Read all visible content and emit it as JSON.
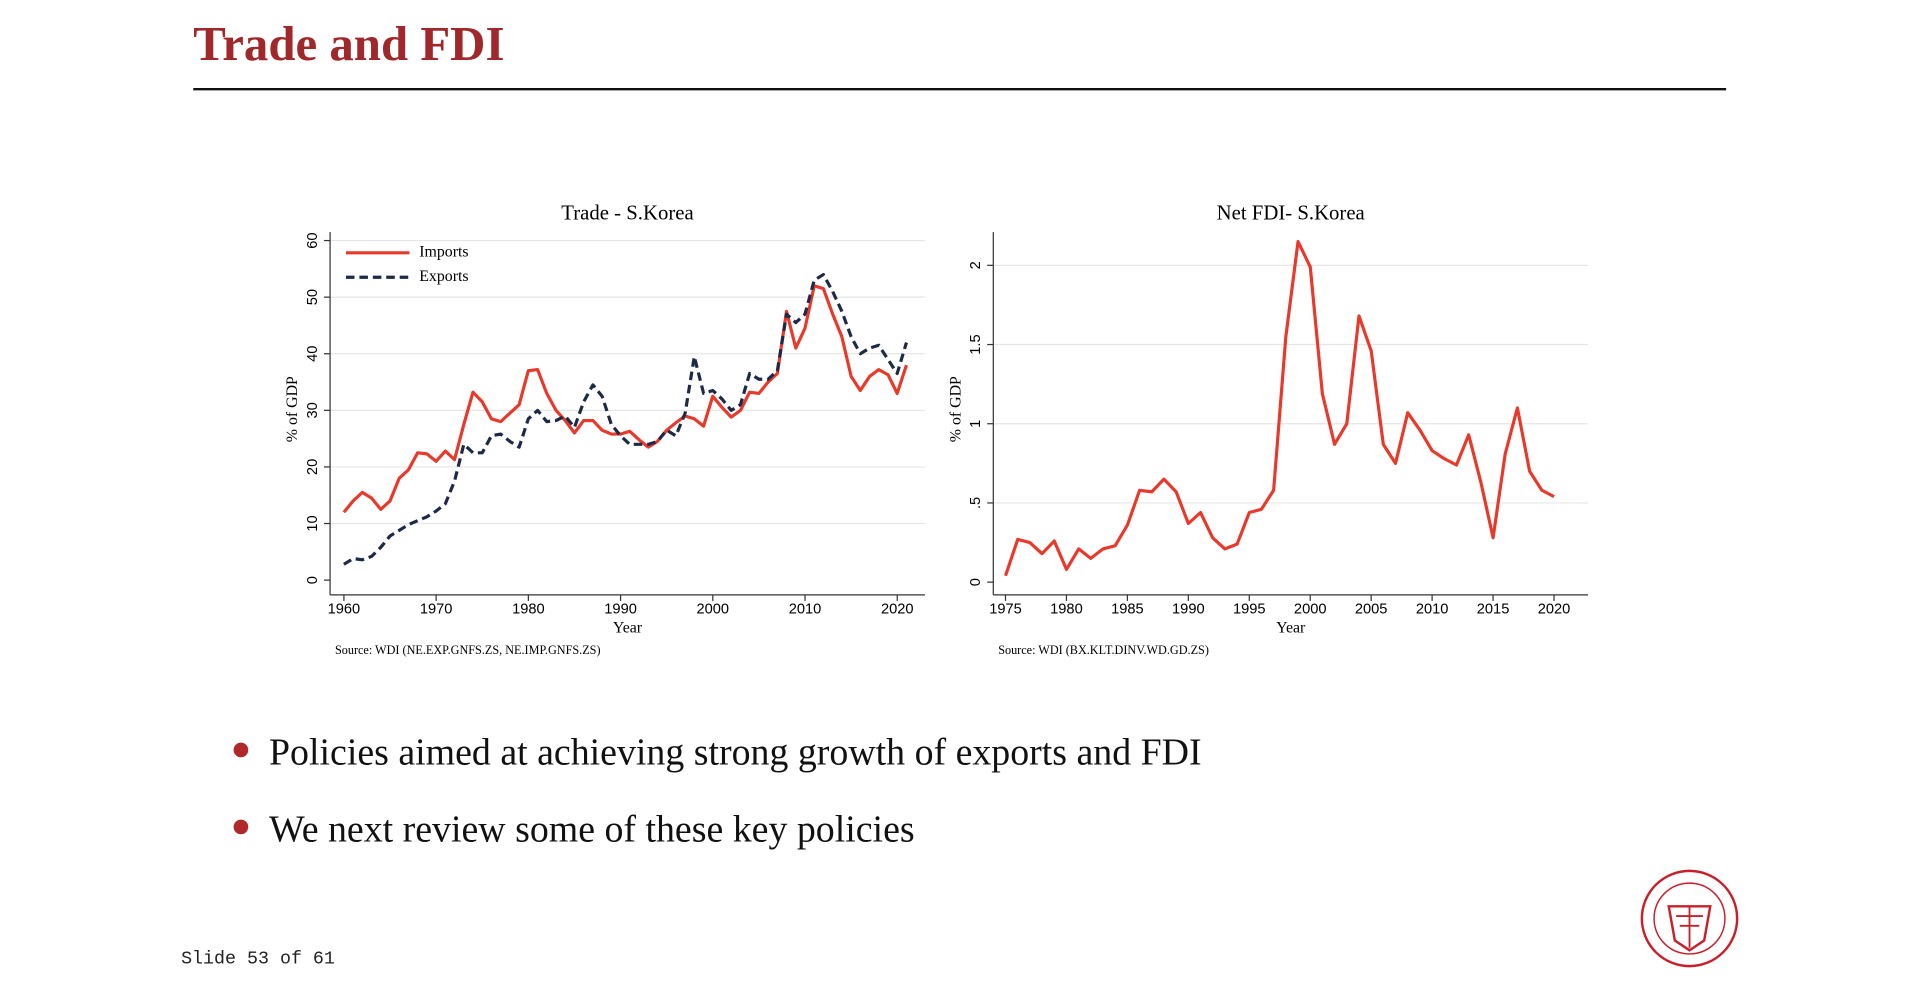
{
  "slide": {
    "title": "Trade and FDI",
    "bullets": [
      "Policies aimed at achieving strong growth of exports and FDI",
      "We next review some of these key policies"
    ],
    "footer": "Slide 53 of 61"
  },
  "chart_data": [
    {
      "type": "line",
      "title": "Trade - S.Korea",
      "xlabel": "Year",
      "ylabel": "% of GDP",
      "note": "Source: WDI (NE.EXP.GNFS.ZS, NE.IMP.GNFS.ZS)",
      "x": [
        1960,
        1961,
        1962,
        1963,
        1964,
        1965,
        1966,
        1967,
        1968,
        1969,
        1970,
        1971,
        1972,
        1973,
        1974,
        1975,
        1976,
        1977,
        1978,
        1979,
        1980,
        1981,
        1982,
        1983,
        1984,
        1985,
        1986,
        1987,
        1988,
        1989,
        1990,
        1991,
        1992,
        1993,
        1994,
        1995,
        1996,
        1997,
        1998,
        1999,
        2000,
        2001,
        2002,
        2003,
        2004,
        2005,
        2006,
        2007,
        2008,
        2009,
        2010,
        2011,
        2012,
        2013,
        2014,
        2015,
        2016,
        2017,
        2018,
        2019,
        2020,
        2021
      ],
      "series": [
        {
          "name": "Imports",
          "color": "#e8392b",
          "style": "solid",
          "values": [
            12,
            14,
            15.5,
            14.5,
            12.5,
            14,
            18,
            19.5,
            22.5,
            22.3,
            21,
            22.8,
            21.3,
            27.5,
            33.2,
            31.5,
            28.5,
            28,
            29.5,
            31,
            37,
            37.2,
            33,
            30,
            28.2,
            26,
            28.2,
            28.2,
            26.5,
            25.8,
            25.8,
            26.3,
            24.8,
            23.5,
            24.5,
            26.5,
            27.8,
            29,
            28.5,
            27.2,
            32.5,
            30.5,
            28.8,
            30,
            33.2,
            33,
            35,
            36.5,
            47.5,
            41,
            44.5,
            52,
            51.5,
            47,
            43,
            36,
            33.5,
            36,
            37.2,
            36.3,
            33,
            38
          ]
        },
        {
          "name": "Exports",
          "color": "#1c2a48",
          "style": "dashed",
          "values": [
            2.8,
            3.8,
            3.6,
            4.2,
            5.8,
            7.8,
            8.8,
            9.8,
            10.5,
            11.2,
            12.2,
            13.5,
            17.5,
            24,
            22.5,
            22.5,
            25.5,
            25.8,
            24.5,
            23.5,
            28.5,
            30,
            28,
            28.2,
            29,
            27,
            31.5,
            34.5,
            32.5,
            27.5,
            25.5,
            24,
            24,
            24,
            24.5,
            26.5,
            25.5,
            29.5,
            39.5,
            33,
            33.5,
            32,
            30,
            31,
            36.5,
            35.5,
            35.5,
            37,
            47,
            45.5,
            47,
            53,
            54,
            51,
            47.5,
            43,
            40,
            41,
            41.5,
            39,
            36.5,
            42
          ]
        }
      ],
      "xlim": [
        1958.5,
        2023
      ],
      "xticks": [
        1960,
        1970,
        1980,
        1990,
        2000,
        2010,
        2020
      ],
      "ylim": [
        -2.6,
        61.5
      ],
      "yticks": [
        0,
        10,
        20,
        30,
        40,
        50,
        60
      ],
      "grid": true,
      "legend": "top-left"
    },
    {
      "type": "line",
      "title": "Net FDI- S.Korea",
      "xlabel": "Year",
      "ylabel": "% of GDP",
      "note": "Source: WDI (BX.KLT.DINV.WD.GD.ZS)",
      "x": [
        1975,
        1976,
        1977,
        1978,
        1979,
        1980,
        1981,
        1982,
        1983,
        1984,
        1985,
        1986,
        1987,
        1988,
        1989,
        1990,
        1991,
        1992,
        1993,
        1994,
        1995,
        1996,
        1997,
        1998,
        1999,
        2000,
        2001,
        2002,
        2003,
        2004,
        2005,
        2006,
        2007,
        2008,
        2009,
        2010,
        2011,
        2012,
        2013,
        2014,
        2015,
        2016,
        2017,
        2018,
        2019,
        2020
      ],
      "series": [
        {
          "name": "Net FDI",
          "color": "#e8392b",
          "style": "solid",
          "values": [
            0.04,
            0.27,
            0.25,
            0.18,
            0.26,
            0.08,
            0.21,
            0.15,
            0.21,
            0.23,
            0.36,
            0.58,
            0.57,
            0.65,
            0.57,
            0.37,
            0.44,
            0.28,
            0.21,
            0.24,
            0.44,
            0.46,
            0.58,
            1.55,
            2.15,
            1.99,
            1.19,
            0.87,
            1.0,
            1.68,
            1.46,
            0.87,
            0.75,
            1.07,
            0.96,
            0.83,
            0.78,
            0.74,
            0.93,
            0.63,
            0.28,
            0.81,
            1.1,
            0.7,
            0.58,
            0.54
          ]
        }
      ],
      "xlim": [
        1974,
        2022.8
      ],
      "xticks": [
        1975,
        1980,
        1985,
        1990,
        1995,
        2000,
        2005,
        2010,
        2015,
        2020
      ],
      "ylim": [
        -0.08,
        2.21
      ],
      "yticks": [
        0,
        {
          "value": 0.5,
          "label": ".5"
        },
        1,
        1.5,
        2
      ],
      "grid": true
    }
  ]
}
